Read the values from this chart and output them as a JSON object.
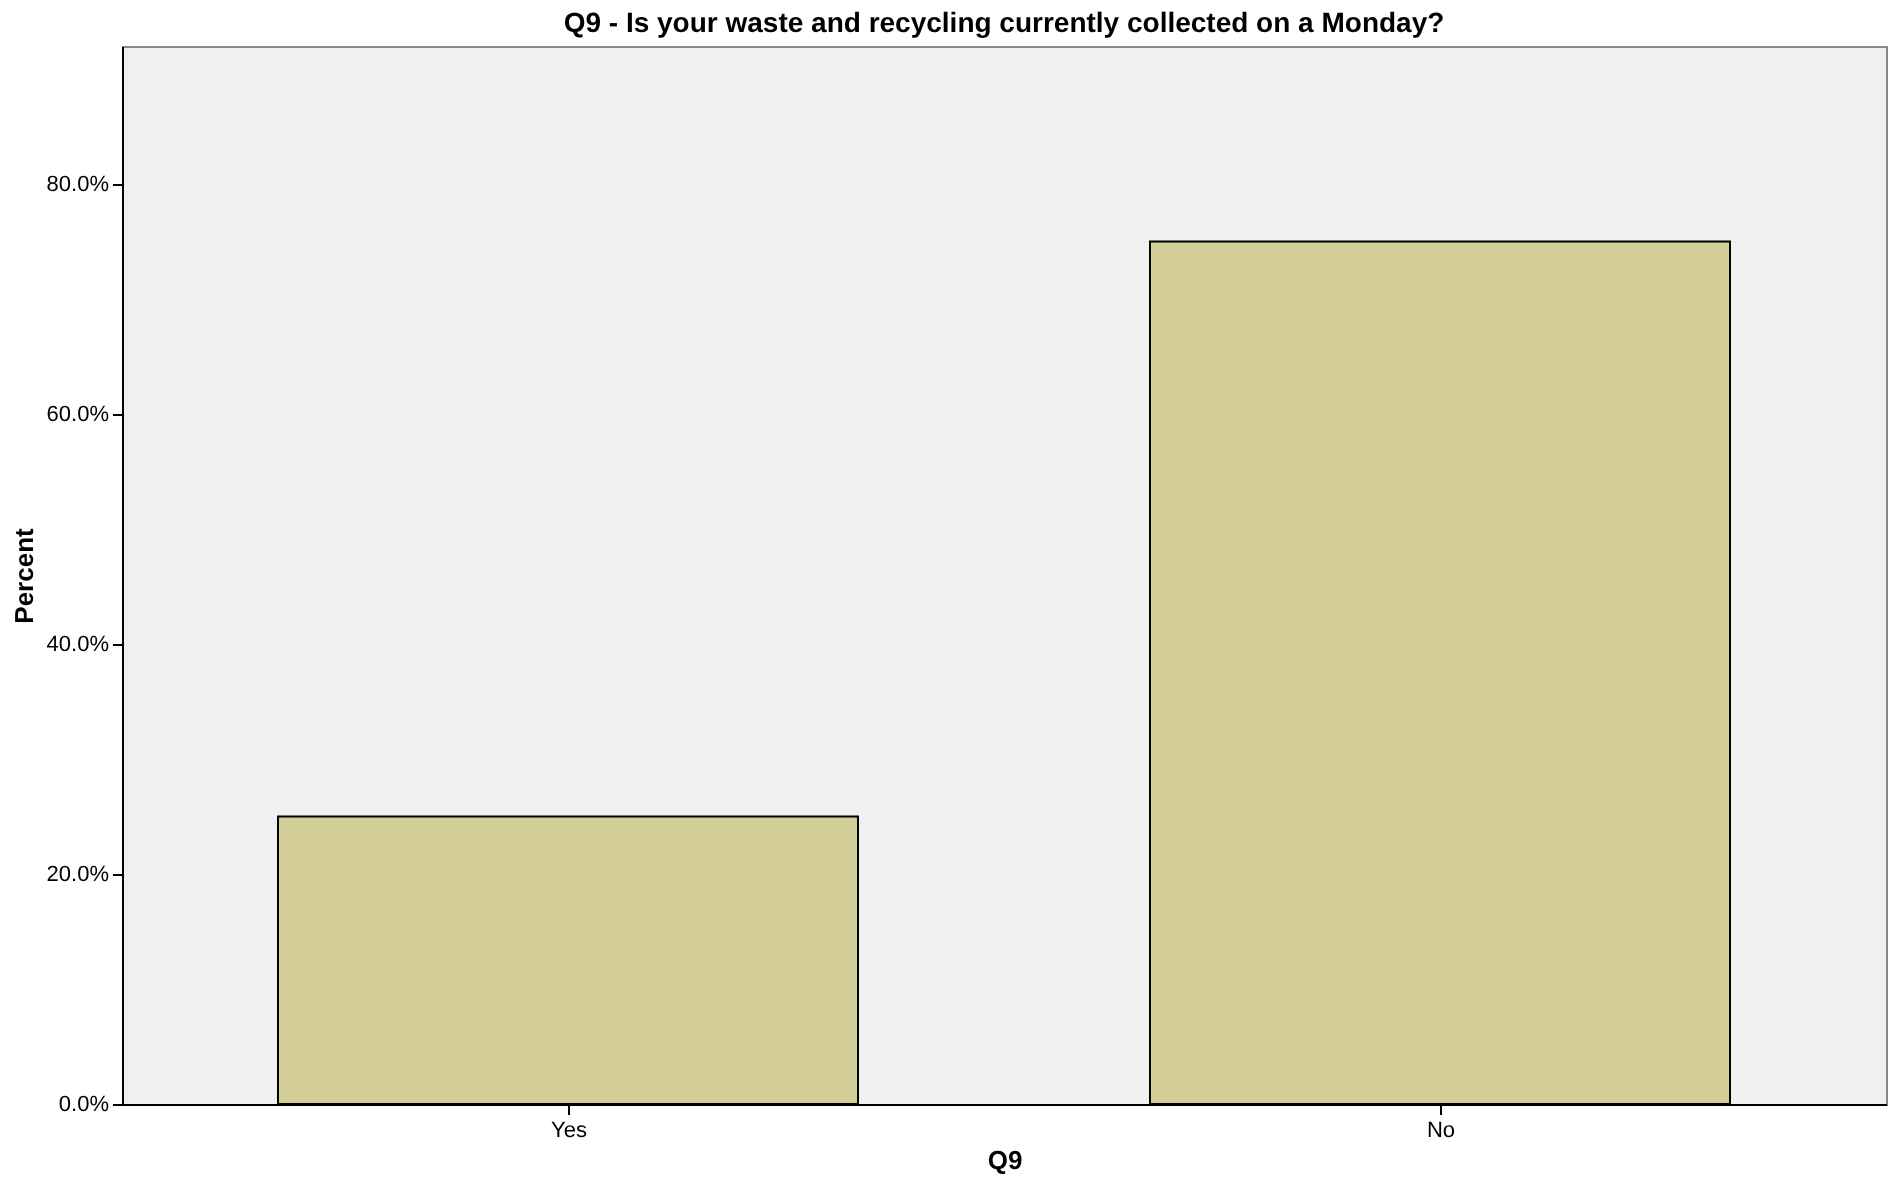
{
  "chart_data": {
    "type": "bar",
    "title": "Q9 - Is your waste and recycling currently collected on a Monday?",
    "xlabel": "Q9",
    "ylabel": "Percent",
    "categories": [
      "Yes",
      "No"
    ],
    "values": [
      25,
      75
    ],
    "color": "#d3ce97",
    "ylim": [
      0,
      92
    ],
    "yticks": [
      {
        "value": 0,
        "label": "0.0%"
      },
      {
        "value": 20,
        "label": "20.0%"
      },
      {
        "value": 40,
        "label": "40.0%"
      },
      {
        "value": 60,
        "label": "60.0%"
      },
      {
        "value": 80,
        "label": "80.0%"
      }
    ],
    "grid": false
  }
}
